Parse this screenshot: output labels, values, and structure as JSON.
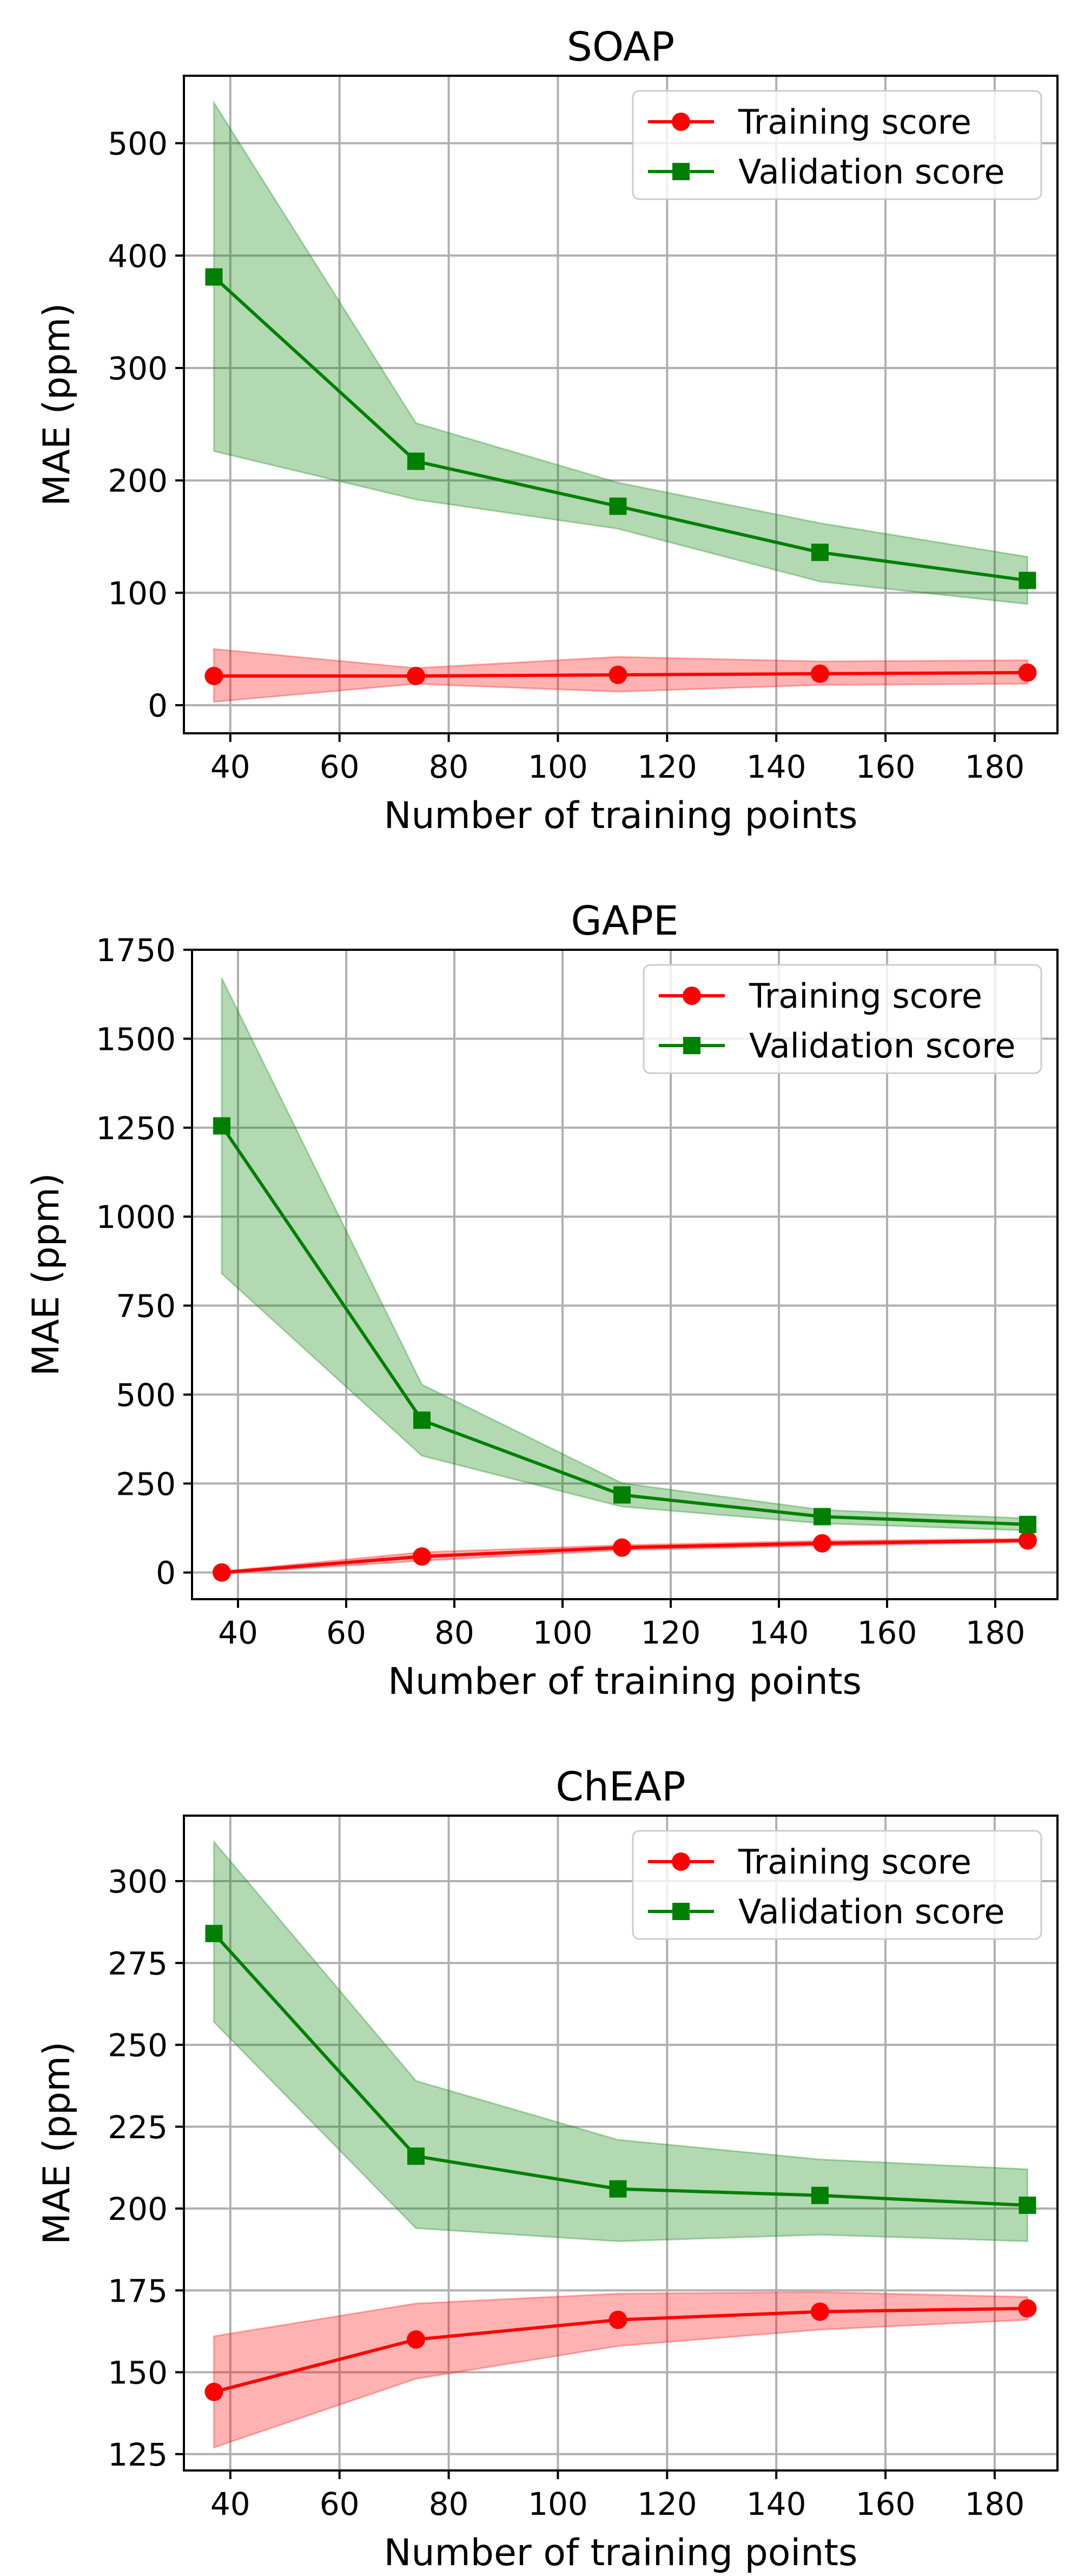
{
  "chart_data": [
    {
      "type": "line",
      "title": "SOAP",
      "xlabel": "Number of training points",
      "ylabel": "MAE (ppm)",
      "xlim": [
        31.5,
        191.5
      ],
      "ylim": [
        -25,
        560
      ],
      "xticks": [
        40,
        60,
        80,
        100,
        120,
        140,
        160,
        180
      ],
      "yticks": [
        0,
        100,
        200,
        300,
        400,
        500
      ],
      "grid": true,
      "legend_position": "top-right",
      "x": [
        37,
        74,
        111,
        148,
        186
      ],
      "series": [
        {
          "name": "Training score",
          "color": "#ff0000",
          "band_color": "#ff0000",
          "marker": "circle",
          "values": [
            26,
            26,
            27,
            28,
            29
          ],
          "band_low": [
            3,
            19,
            12,
            18,
            19
          ],
          "band_high": [
            50,
            33,
            43,
            39,
            40
          ]
        },
        {
          "name": "Validation score",
          "color": "#008000",
          "band_color": "#008000",
          "marker": "square",
          "values": [
            381,
            217,
            177,
            136,
            111
          ],
          "band_low": [
            226,
            183,
            157,
            110,
            90
          ],
          "band_high": [
            536,
            251,
            198,
            162,
            132
          ]
        }
      ]
    },
    {
      "type": "line",
      "title": "GAPE",
      "xlabel": "Number of training points",
      "ylabel": "MAE (ppm)",
      "xlim": [
        31.5,
        191.5
      ],
      "ylim": [
        -75,
        1750
      ],
      "xticks": [
        40,
        60,
        80,
        100,
        120,
        140,
        160,
        180
      ],
      "yticks": [
        0,
        250,
        500,
        750,
        1000,
        1250,
        1500,
        1750
      ],
      "grid": true,
      "legend_position": "top-right",
      "x": [
        37,
        74,
        111,
        148,
        186
      ],
      "series": [
        {
          "name": "Training score",
          "color": "#ff0000",
          "band_color": "#ff0000",
          "marker": "circle",
          "values": [
            0,
            45,
            70,
            82,
            90
          ],
          "band_low": [
            -3,
            33,
            63,
            75,
            85
          ],
          "band_high": [
            3,
            57,
            77,
            89,
            95
          ]
        },
        {
          "name": "Validation score",
          "color": "#008000",
          "band_color": "#008000",
          "marker": "square",
          "values": [
            1255,
            428,
            218,
            157,
            135
          ],
          "band_low": [
            840,
            328,
            185,
            138,
            118
          ],
          "band_high": [
            1670,
            528,
            251,
            176,
            152
          ]
        }
      ]
    },
    {
      "type": "line",
      "title": "ChEAP",
      "xlabel": "Number of training points",
      "ylabel": "MAE (ppm)",
      "xlim": [
        31.5,
        191.5
      ],
      "ylim": [
        120,
        320
      ],
      "xticks": [
        40,
        60,
        80,
        100,
        120,
        140,
        160,
        180
      ],
      "yticks": [
        125,
        150,
        175,
        200,
        225,
        250,
        275,
        300
      ],
      "grid": true,
      "legend_position": "top-right",
      "x": [
        37,
        74,
        111,
        148,
        186
      ],
      "series": [
        {
          "name": "Training score",
          "color": "#ff0000",
          "band_color": "#ff0000",
          "marker": "circle",
          "values": [
            144,
            160,
            166,
            168.5,
            169.5
          ],
          "band_low": [
            127,
            148,
            158,
            163,
            166
          ],
          "band_high": [
            161,
            171,
            174,
            174.5,
            173
          ]
        },
        {
          "name": "Validation score",
          "color": "#008000",
          "band_color": "#008000",
          "marker": "square",
          "values": [
            284,
            216,
            206,
            204,
            201
          ],
          "band_low": [
            257,
            194,
            190,
            192,
            190
          ],
          "band_high": [
            312,
            239,
            221,
            215,
            212
          ]
        }
      ]
    }
  ]
}
